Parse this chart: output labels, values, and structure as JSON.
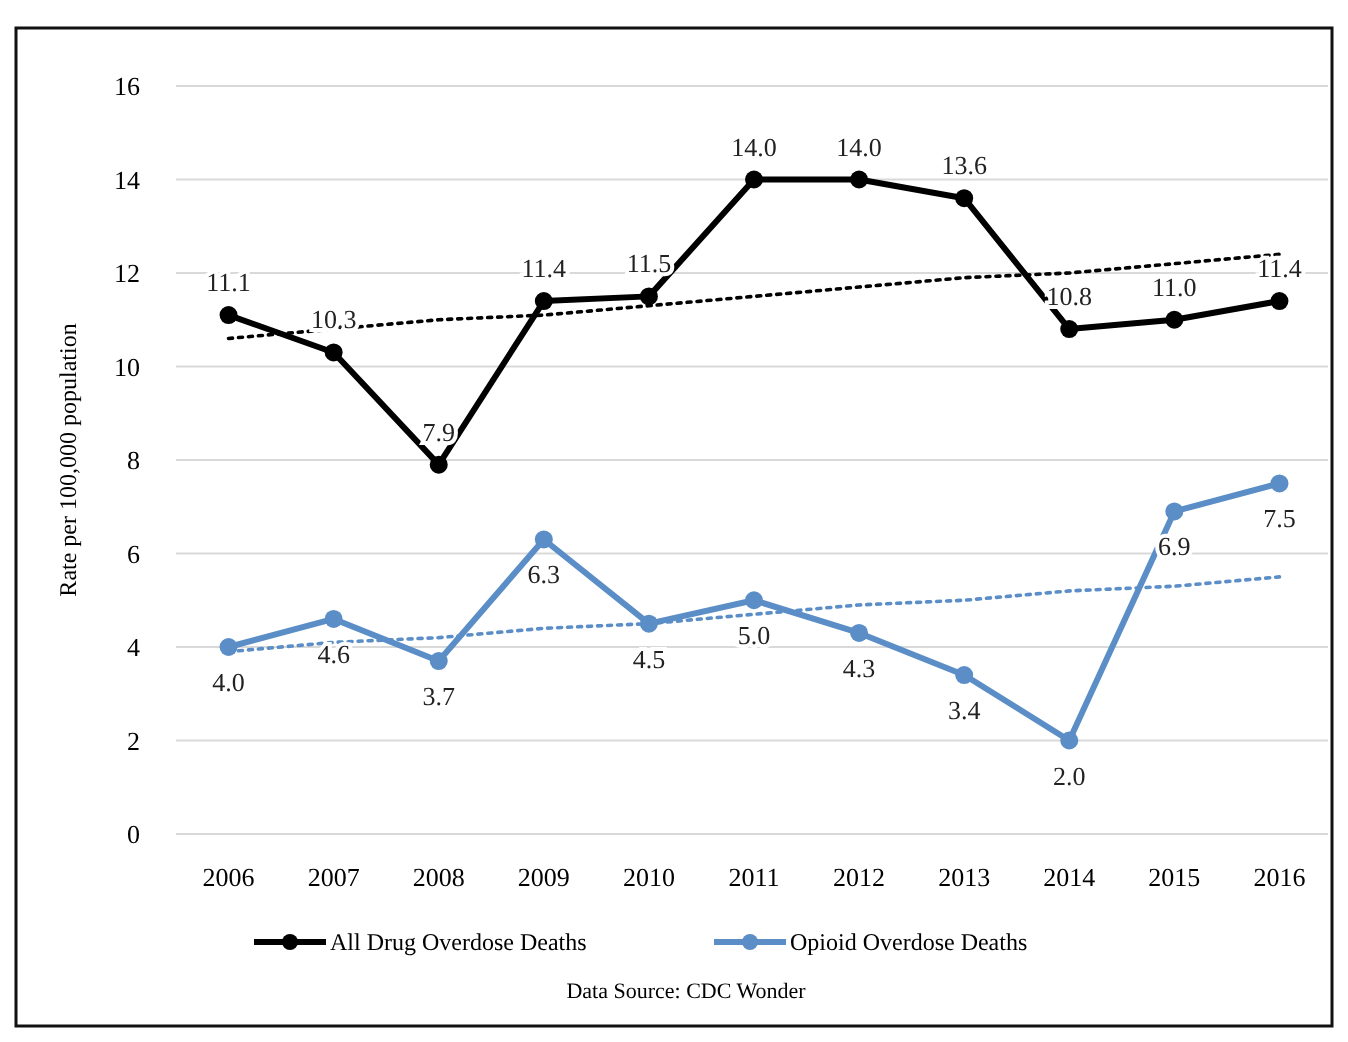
{
  "chart_data": {
    "type": "line",
    "ylabel": "Rate per 100,000 population",
    "categories": [
      "2006",
      "2007",
      "2008",
      "2009",
      "2010",
      "2011",
      "2012",
      "2013",
      "2014",
      "2015",
      "2016"
    ],
    "series": [
      {
        "name": "All Drug Overdose Deaths",
        "color": "#000000",
        "values": [
          11.1,
          10.3,
          7.9,
          11.4,
          11.5,
          14.0,
          14.0,
          13.6,
          10.8,
          11.0,
          11.4
        ],
        "value_labels": [
          "11.1",
          "10.3",
          "7.9",
          "11.4",
          "11.5",
          "14.0",
          "14.0",
          "13.6",
          "10.8",
          "11.0",
          "11.4"
        ],
        "marker": "circle"
      },
      {
        "name": "Opioid Overdose Deaths",
        "color": "#5b8ec7",
        "values": [
          4.0,
          4.6,
          3.7,
          6.3,
          4.5,
          5.0,
          4.3,
          3.4,
          2.0,
          6.9,
          7.5
        ],
        "value_labels": [
          "4.0",
          "4.6",
          "3.7",
          "6.3",
          "4.5",
          "5.0",
          "4.3",
          "3.4",
          "2.0",
          "6.9",
          "7.5"
        ],
        "marker": "circle"
      },
      {
        "color": "#000000",
        "values": [
          10.6,
          10.8,
          11.0,
          11.1,
          11.3,
          11.5,
          11.7,
          11.9,
          12.0,
          12.2,
          12.4
        ],
        "line_style": "dotted",
        "marker": "none"
      },
      {
        "color": "#5b8ec7",
        "values": [
          3.9,
          4.1,
          4.2,
          4.4,
          4.5,
          4.7,
          4.9,
          5.0,
          5.2,
          5.3,
          5.5
        ],
        "line_style": "dotted",
        "marker": "none"
      }
    ],
    "ylim": [
      0,
      16
    ],
    "yticks": [
      0,
      2,
      4,
      6,
      8,
      10,
      12,
      14,
      16
    ],
    "grid": "y",
    "legend": "bottom",
    "annotations": [
      "Data Source: CDC Wonder"
    ]
  }
}
